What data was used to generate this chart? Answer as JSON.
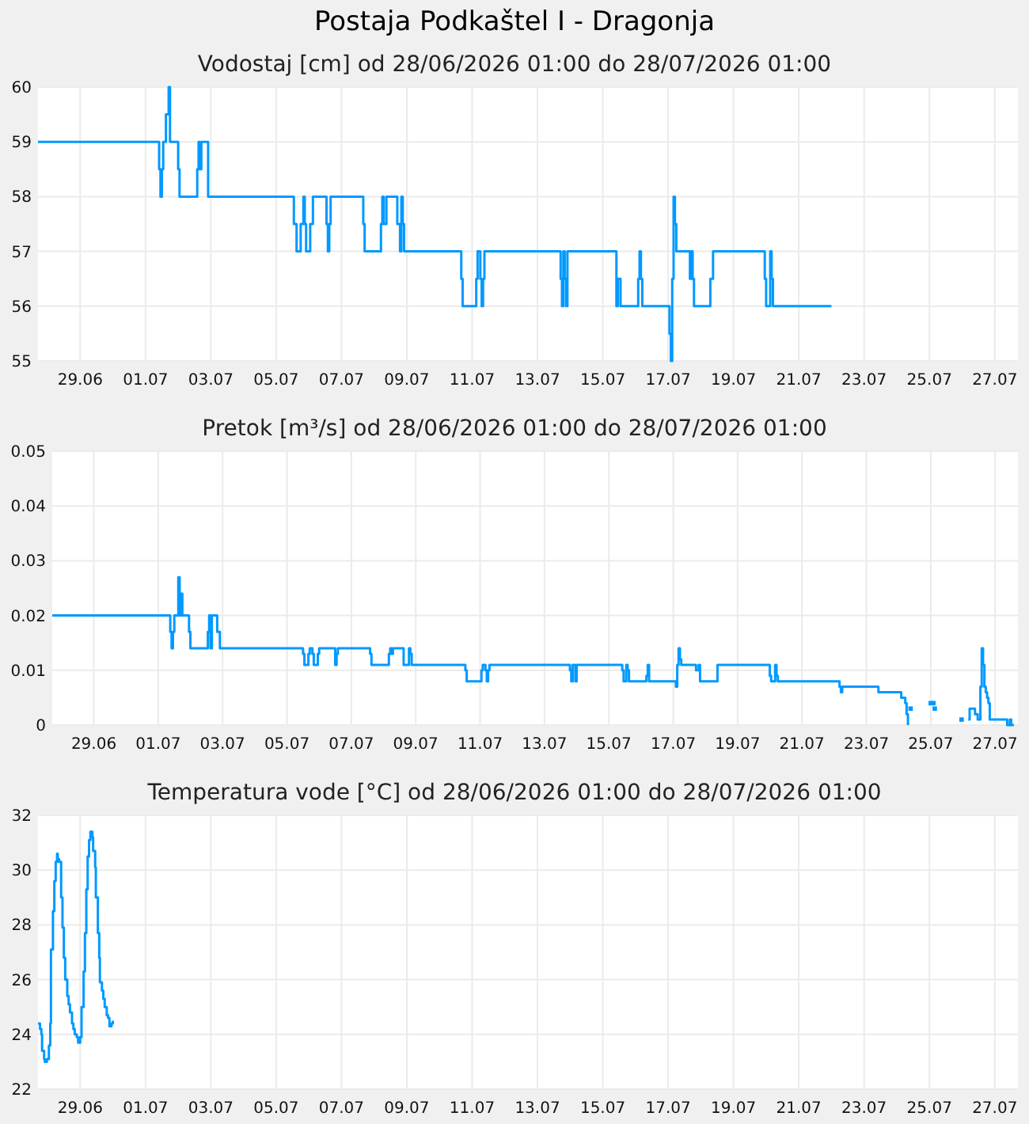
{
  "chart_data": [
    {
      "type": "step",
      "title": "Postaja Podkaštel I - Dragonja",
      "subtitle": "Vodostaj [cm] od 28/06/2026 01:00 do 28/07/2026 01:00",
      "color": "#0099ff",
      "grid": true,
      "x": [
        "2026-06-28T01:00",
        "2026-07-01T18:00",
        "2026-07-01T19:00",
        "2026-07-01T20:00",
        "2026-07-01T21:00",
        "2026-07-01T23:00",
        "2026-07-02T01:00",
        "2026-07-02T02:00",
        "2026-07-02T08:00",
        "2026-07-02T09:00",
        "2026-07-02T22:00",
        "2026-07-02T23:00",
        "2026-07-03T00:00",
        "2026-07-03T01:00",
        "2026-07-03T06:00",
        "2026-07-05T21:00",
        "2026-07-05T23:00",
        "2026-07-06T02:00",
        "2026-07-06T04:00",
        "2026-07-06T05:00",
        "2026-07-06T06:00",
        "2026-07-06T09:00",
        "2026-07-06T11:00",
        "2026-07-06T21:00",
        "2026-07-06T22:00",
        "2026-07-06T23:00",
        "2026-07-07T00:00",
        "2026-07-08T00:00",
        "2026-07-08T01:00",
        "2026-07-08T13:00",
        "2026-07-08T14:00",
        "2026-07-08T15:00",
        "2026-07-08T17:00",
        "2026-07-09T01:00",
        "2026-07-09T03:00",
        "2026-07-09T04:00",
        "2026-07-09T05:00",
        "2026-07-09T06:00",
        "2026-07-11T00:00",
        "2026-07-11T01:00",
        "2026-07-11T11:00",
        "2026-07-11T12:00",
        "2026-07-11T14:00",
        "2026-07-11T15:00",
        "2026-07-11T16:00",
        "2026-07-11T17:00",
        "2026-07-14T01:00",
        "2026-07-14T02:00",
        "2026-07-14T03:00",
        "2026-07-14T04:00",
        "2026-07-14T05:00",
        "2026-07-14T06:00",
        "2026-07-15T18:00",
        "2026-07-15T19:00",
        "2026-07-15T21:00",
        "2026-07-16T10:00",
        "2026-07-16T11:00",
        "2026-07-16T12:00",
        "2026-07-16T13:00",
        "2026-07-17T09:00",
        "2026-07-17T10:00",
        "2026-07-17T11:00",
        "2026-07-17T12:00",
        "2026-07-17T13:00",
        "2026-07-17T14:00",
        "2026-07-18T00:00",
        "2026-07-18T01:00",
        "2026-07-18T02:00",
        "2026-07-18T03:00",
        "2026-07-18T15:00",
        "2026-07-18T17:00",
        "2026-07-20T07:00",
        "2026-07-20T08:00",
        "2026-07-20T11:00",
        "2026-07-20T12:00",
        "2026-07-20T13:00",
        "2026-07-22T08:00"
      ],
      "values": [
        59,
        58.5,
        58,
        58.5,
        59,
        59.5,
        60,
        59,
        58.5,
        58,
        58.5,
        59,
        58.5,
        59,
        58,
        57.5,
        57,
        57.5,
        58,
        57.5,
        57,
        57.5,
        58,
        57.5,
        57,
        57.5,
        58,
        57.5,
        57,
        57.5,
        58,
        57.5,
        58,
        57.5,
        57,
        58,
        57.5,
        57,
        56.5,
        56,
        56.5,
        57,
        56.5,
        56,
        56.5,
        57,
        56.5,
        56,
        57,
        56.5,
        56,
        57,
        56,
        56.5,
        56,
        56.5,
        57,
        56.5,
        56,
        55.5,
        55,
        56.5,
        58,
        57.5,
        57,
        56.5,
        57,
        56.5,
        56,
        56.5,
        57,
        56.5,
        56,
        57,
        56.5,
        56,
        56
      ],
      "xlim": [
        "2026-06-28T01:00",
        "2026-07-28T01:00"
      ],
      "xticks": [
        {
          "value": "2026-06-29T08:00",
          "label": "29.06"
        },
        {
          "value": "2026-07-01T08:00",
          "label": "01.07"
        },
        {
          "value": "2026-07-03T08:00",
          "label": "03.07"
        },
        {
          "value": "2026-07-05T08:00",
          "label": "05.07"
        },
        {
          "value": "2026-07-07T08:00",
          "label": "07.07"
        },
        {
          "value": "2026-07-09T08:00",
          "label": "09.07"
        },
        {
          "value": "2026-07-11T08:00",
          "label": "11.07"
        },
        {
          "value": "2026-07-13T08:00",
          "label": "13.07"
        },
        {
          "value": "2026-07-15T08:00",
          "label": "15.07"
        },
        {
          "value": "2026-07-17T08:00",
          "label": "17.07"
        },
        {
          "value": "2026-07-19T08:00",
          "label": "19.07"
        },
        {
          "value": "2026-07-21T08:00",
          "label": "21.07"
        },
        {
          "value": "2026-07-23T08:00",
          "label": "23.07"
        },
        {
          "value": "2026-07-25T08:00",
          "label": "25.07"
        },
        {
          "value": "2026-07-27T08:00",
          "label": "27.07"
        }
      ],
      "ylim": [
        55,
        60
      ],
      "yticks": [
        55,
        56,
        57,
        58,
        59,
        60
      ]
    },
    {
      "type": "step",
      "title": "Pretok [m³/s] od 28/06/2026 01:00 do 28/07/2026 01:00",
      "grid": true,
      "series": [
        {
          "color": "#0099ff",
          "x": [
            "2026-06-28T01:00",
            "2026-07-01T17:00",
            "2026-07-01T18:00",
            "2026-07-01T19:00",
            "2026-07-01T20:00",
            "2026-07-01T23:00",
            "2026-07-02T00:00",
            "2026-07-02T01:00",
            "2026-07-02T02:00",
            "2026-07-02T07:00",
            "2026-07-02T08:00",
            "2026-07-02T21:00",
            "2026-07-02T22:00",
            "2026-07-02T23:00",
            "2026-07-03T00:00",
            "2026-07-03T04:00",
            "2026-07-03T06:00",
            "2026-07-05T20:00",
            "2026-07-05T21:00",
            "2026-07-06T00:00",
            "2026-07-06T01:00",
            "2026-07-06T03:00",
            "2026-07-06T04:00",
            "2026-07-06T07:00",
            "2026-07-06T08:00",
            "2026-07-06T20:00",
            "2026-07-06T21:00",
            "2026-07-06T22:00",
            "2026-07-07T22:00",
            "2026-07-07T23:00",
            "2026-07-08T12:00",
            "2026-07-08T13:00",
            "2026-07-08T14:00",
            "2026-07-08T15:00",
            "2026-07-08T23:00",
            "2026-07-09T03:00",
            "2026-07-09T04:00",
            "2026-07-09T05:00",
            "2026-07-10T21:00",
            "2026-07-10T22:00",
            "2026-07-11T09:00",
            "2026-07-11T10:00",
            "2026-07-11T12:00",
            "2026-07-11T13:00",
            "2026-07-11T14:00",
            "2026-07-11T15:00",
            "2026-07-14T03:00",
            "2026-07-14T04:00",
            "2026-07-14T05:00",
            "2026-07-14T07:00",
            "2026-07-14T08:00",
            "2026-07-15T18:00",
            "2026-07-15T19:00",
            "2026-07-15T21:00",
            "2026-07-15T22:00",
            "2026-07-15T23:00",
            "2026-07-16T12:00",
            "2026-07-16T13:00",
            "2026-07-16T14:00",
            "2026-07-17T10:00",
            "2026-07-17T11:00",
            "2026-07-17T12:00",
            "2026-07-17T13:00",
            "2026-07-17T14:00",
            "2026-07-18T01:00",
            "2026-07-18T03:00",
            "2026-07-18T04:00",
            "2026-07-18T17:00",
            "2026-07-20T08:00",
            "2026-07-20T09:00",
            "2026-07-20T12:00",
            "2026-07-20T13:00",
            "2026-07-20T14:00",
            "2026-07-22T12:00",
            "2026-07-22T13:00",
            "2026-07-22T14:00",
            "2026-07-23T17:00",
            "2026-07-24T10:00",
            "2026-07-24T13:00",
            "2026-07-24T14:00",
            "2026-07-24T15:00",
            "2026-07-24T16:00",
            "2026-07-26T12:00",
            "2026-07-26T13:00",
            "2026-07-26T17:00",
            "2026-07-26T19:00",
            "2026-07-26T21:00",
            "2026-07-26T22:00",
            "2026-07-26T23:00",
            "2026-07-27T00:00",
            "2026-07-27T01:00",
            "2026-07-27T02:00",
            "2026-07-27T03:00",
            "2026-07-27T04:00",
            "2026-07-27T17:00",
            "2026-07-27T19:00",
            "2026-07-27T20:00",
            "2026-07-27T22:00"
          ],
          "values": [
            0.02,
            0.017,
            0.014,
            0.017,
            0.02,
            0.027,
            0.02,
            0.024,
            0.02,
            0.017,
            0.014,
            0.017,
            0.02,
            0.014,
            0.02,
            0.017,
            0.014,
            0.013,
            0.011,
            0.013,
            0.014,
            0.013,
            0.011,
            0.013,
            0.014,
            0.011,
            0.013,
            0.014,
            0.013,
            0.011,
            0.013,
            0.014,
            0.013,
            0.014,
            0.011,
            0.014,
            0.013,
            0.011,
            0.01,
            0.008,
            0.01,
            0.011,
            0.01,
            0.008,
            0.01,
            0.011,
            0.01,
            0.008,
            0.011,
            0.008,
            0.011,
            0.01,
            0.008,
            0.011,
            0.01,
            0.008,
            0.009,
            0.011,
            0.008,
            0.007,
            0.011,
            0.014,
            0.012,
            0.011,
            0.01,
            0.011,
            0.008,
            0.011,
            0.009,
            0.008,
            0.011,
            0.009,
            0.008,
            0.007,
            0.006,
            0.007,
            0.006,
            0.005,
            0.004,
            0.002,
            0,
            null,
            0.001,
            0.003,
            0.002,
            0.001,
            0.007,
            0.014,
            0.011,
            0.007,
            0.006,
            0.005,
            0.004,
            0.001,
            0,
            0.001,
            0,
            0
          ]
        },
        {
          "type": "scatter",
          "marker": "square",
          "color": "#0099ff",
          "x": [
            "2026-07-24T17:00",
            "2026-07-25T08:00",
            "2026-07-25T10:00",
            "2026-07-25T11:00",
            "2026-07-26T07:00"
          ],
          "values": [
            0.003,
            0.004,
            0.004,
            0.003,
            0.001
          ]
        }
      ],
      "xlim": [
        "2026-06-28T01:00",
        "2026-07-28T01:00"
      ],
      "xticks": [
        {
          "value": "2026-06-29T08:00",
          "label": "29.06"
        },
        {
          "value": "2026-07-01T08:00",
          "label": "01.07"
        },
        {
          "value": "2026-07-03T08:00",
          "label": "03.07"
        },
        {
          "value": "2026-07-05T08:00",
          "label": "05.07"
        },
        {
          "value": "2026-07-07T08:00",
          "label": "07.07"
        },
        {
          "value": "2026-07-09T08:00",
          "label": "09.07"
        },
        {
          "value": "2026-07-11T08:00",
          "label": "11.07"
        },
        {
          "value": "2026-07-13T08:00",
          "label": "13.07"
        },
        {
          "value": "2026-07-15T08:00",
          "label": "15.07"
        },
        {
          "value": "2026-07-17T08:00",
          "label": "17.07"
        },
        {
          "value": "2026-07-19T08:00",
          "label": "19.07"
        },
        {
          "value": "2026-07-21T08:00",
          "label": "21.07"
        },
        {
          "value": "2026-07-23T08:00",
          "label": "23.07"
        },
        {
          "value": "2026-07-25T08:00",
          "label": "25.07"
        },
        {
          "value": "2026-07-27T08:00",
          "label": "27.07"
        }
      ],
      "ylim": [
        0,
        0.05
      ],
      "yticks": [
        0,
        0.01,
        0.02,
        0.03,
        0.04,
        0.05
      ]
    },
    {
      "type": "step",
      "title": "Temperatura vode [°C] od 28/06/2026 01:00 do 28/07/2026 01:00",
      "color": "#0099ff",
      "grid": true,
      "x": [
        "2026-06-28T01:00",
        "2026-06-28T02:30",
        "2026-06-28T03:30",
        "2026-06-28T04:00",
        "2026-06-28T05:30",
        "2026-06-28T06:00",
        "2026-06-28T07:30",
        "2026-06-28T09:00",
        "2026-06-28T10:00",
        "2026-06-28T10:30",
        "2026-06-28T12:00",
        "2026-06-28T13:00",
        "2026-06-28T14:00",
        "2026-06-28T15:00",
        "2026-06-28T15:30",
        "2026-06-28T16:30",
        "2026-06-28T18:00",
        "2026-06-28T19:00",
        "2026-06-28T20:00",
        "2026-06-28T21:00",
        "2026-06-28T22:30",
        "2026-06-28T23:30",
        "2026-06-29T00:30",
        "2026-06-29T02:00",
        "2026-06-29T03:00",
        "2026-06-29T04:00",
        "2026-06-29T05:30",
        "2026-06-29T06:30",
        "2026-06-29T08:00",
        "2026-06-29T09:00",
        "2026-06-29T10:30",
        "2026-06-29T11:30",
        "2026-06-29T12:30",
        "2026-06-29T13:30",
        "2026-06-29T14:30",
        "2026-06-29T15:30",
        "2026-06-29T17:00",
        "2026-06-29T17:30",
        "2026-06-29T19:00",
        "2026-06-29T19:30",
        "2026-06-29T21:00",
        "2026-06-29T22:00",
        "2026-06-29T22:30",
        "2026-06-30T00:00",
        "2026-06-30T01:00",
        "2026-06-30T02:00",
        "2026-06-30T03:30",
        "2026-06-30T04:30",
        "2026-06-30T05:30",
        "2026-06-30T07:00",
        "2026-06-30T08:00"
      ],
      "values": [
        24.4,
        24.2,
        24.0,
        23.4,
        23.1,
        23.0,
        23.1,
        23.6,
        24.4,
        27.1,
        28.5,
        29.6,
        30.3,
        30.6,
        30.4,
        30.3,
        29.0,
        27.9,
        26.8,
        26.0,
        25.4,
        25.1,
        24.8,
        24.4,
        24.2,
        24.0,
        23.9,
        23.7,
        23.9,
        25.0,
        26.3,
        27.7,
        29.3,
        30.5,
        31.1,
        31.4,
        31.2,
        30.7,
        30.1,
        29.0,
        27.7,
        26.8,
        25.9,
        25.6,
        25.3,
        25.0,
        24.7,
        24.6,
        24.3,
        24.4,
        24.5
      ],
      "xlim": [
        "2026-06-28T01:00",
        "2026-07-28T01:00"
      ],
      "xticks": [
        {
          "value": "2026-06-29T08:00",
          "label": "29.06"
        },
        {
          "value": "2026-07-01T08:00",
          "label": "01.07"
        },
        {
          "value": "2026-07-03T08:00",
          "label": "03.07"
        },
        {
          "value": "2026-07-05T08:00",
          "label": "05.07"
        },
        {
          "value": "2026-07-07T08:00",
          "label": "07.07"
        },
        {
          "value": "2026-07-09T08:00",
          "label": "09.07"
        },
        {
          "value": "2026-07-11T08:00",
          "label": "11.07"
        },
        {
          "value": "2026-07-13T08:00",
          "label": "13.07"
        },
        {
          "value": "2026-07-15T08:00",
          "label": "15.07"
        },
        {
          "value": "2026-07-17T08:00",
          "label": "17.07"
        },
        {
          "value": "2026-07-19T08:00",
          "label": "19.07"
        },
        {
          "value": "2026-07-21T08:00",
          "label": "21.07"
        },
        {
          "value": "2026-07-23T08:00",
          "label": "23.07"
        },
        {
          "value": "2026-07-25T08:00",
          "label": "25.07"
        },
        {
          "value": "2026-07-27T08:00",
          "label": "27.07"
        }
      ],
      "ylim": [
        22,
        32
      ],
      "yticks": [
        22,
        24,
        26,
        28,
        30,
        32
      ]
    }
  ]
}
